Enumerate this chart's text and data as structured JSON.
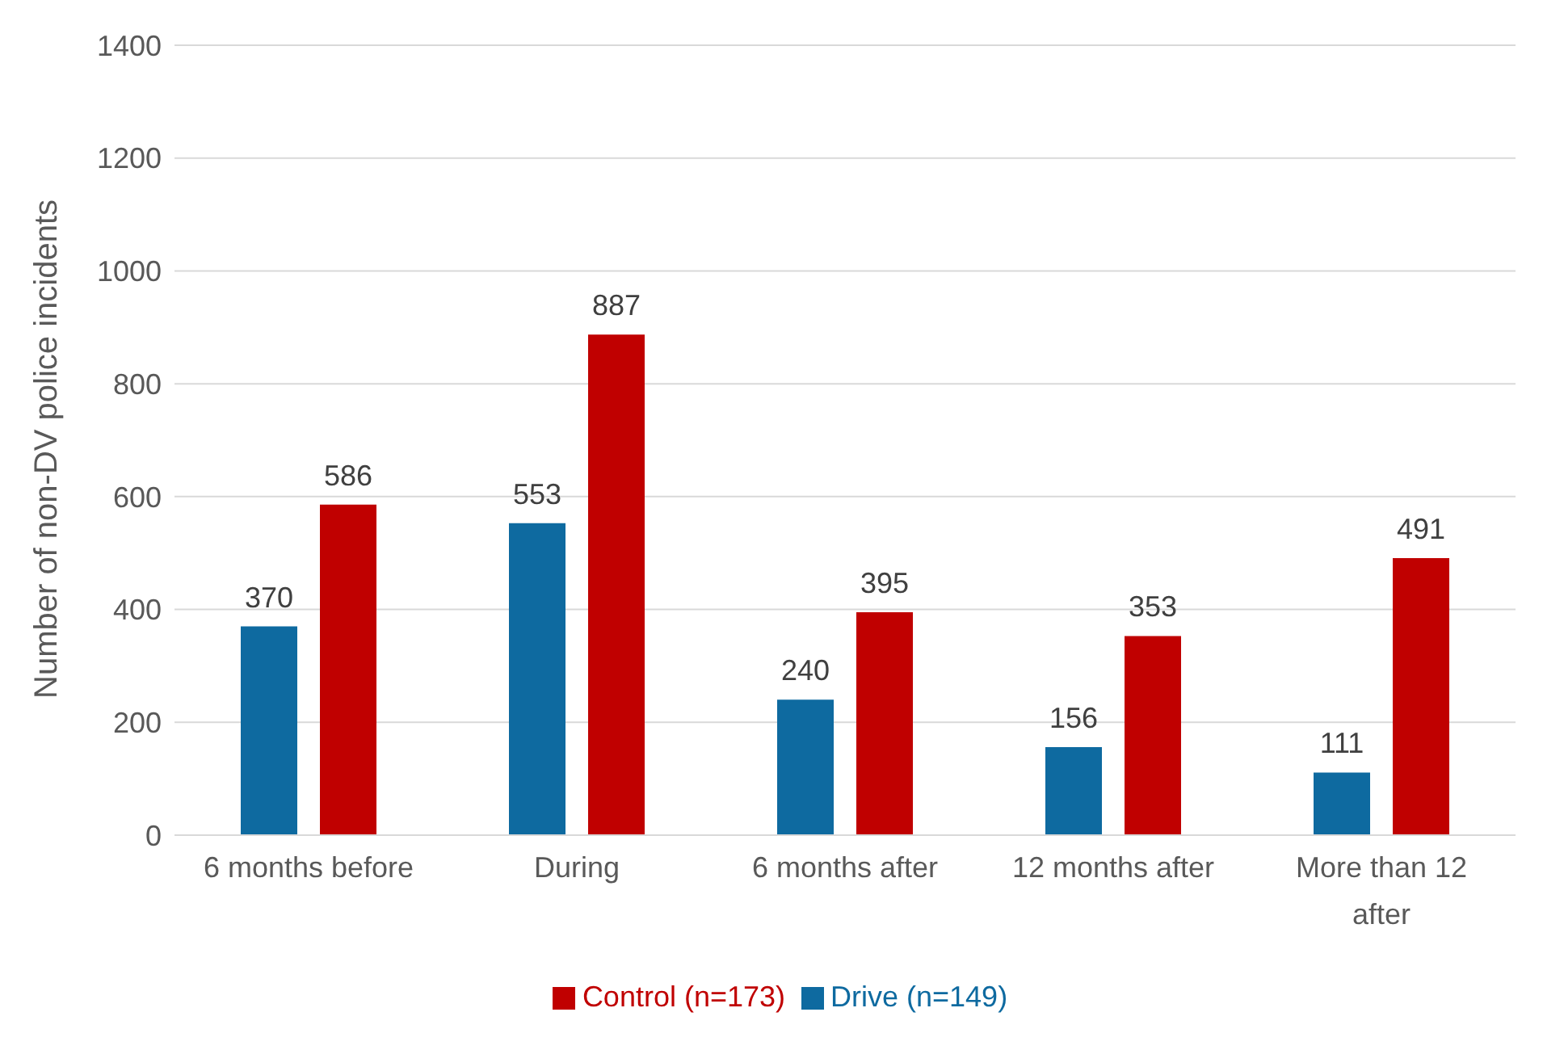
{
  "chart_data": {
    "type": "bar",
    "ylabel": "Number of non-DV police incidents",
    "categories": [
      "6 months before",
      "During",
      "6 months after",
      "12 months after",
      "More than 12 after"
    ],
    "series": [
      {
        "name": "Drive (n=149)",
        "color": "#0e6aa0",
        "values": [
          370,
          553,
          240,
          156,
          111
        ]
      },
      {
        "name": "Control (n=173)",
        "color": "#c00000",
        "values": [
          586,
          887,
          395,
          353,
          491
        ]
      }
    ],
    "ylim": [
      0,
      1400
    ],
    "yticks": [
      0,
      200,
      400,
      600,
      800,
      1000,
      1200,
      1400
    ],
    "grid": "y",
    "legend": "bottom",
    "data_labels": true
  }
}
